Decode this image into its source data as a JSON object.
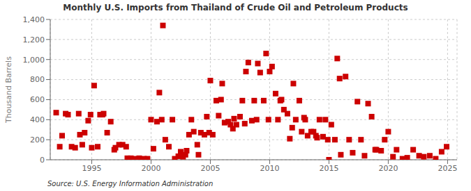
{
  "chart_data": {
    "type": "scatter",
    "title": "Monthly U.S. Imports from Thailand of Crude Oil and Petroleum Products",
    "ylabel": "Thousand Barrels",
    "annotations": [
      "Source: U.S. Energy Information Administration"
    ],
    "color": "#cc0000",
    "marker": "square",
    "grid": true,
    "xlim": [
      1991.5,
      2025.8
    ],
    "xticks": [
      1995,
      2000,
      2005,
      2010,
      2015,
      2020,
      2025
    ],
    "ylim": [
      0,
      1400
    ],
    "yticks": [
      0,
      200,
      400,
      600,
      800,
      {
        "value": 1000,
        "label": "1,000"
      },
      {
        "value": 1200,
        "label": "1,200"
      },
      {
        "value": 1400,
        "label": "1,400"
      }
    ],
    "x": [
      1992.0,
      1992.3,
      1992.5,
      1992.8,
      1993.0,
      1993.3,
      1993.6,
      1993.9,
      1994.0,
      1994.2,
      1994.4,
      1994.7,
      1994.9,
      1995.0,
      1995.2,
      1995.5,
      1995.7,
      1995.9,
      1996.0,
      1996.3,
      1996.6,
      1996.9,
      1997.0,
      1997.3,
      1997.6,
      1997.9,
      1998.0,
      1998.3,
      1998.6,
      1999.0,
      1999.4,
      1999.7,
      2000.0,
      2000.2,
      2000.5,
      2000.7,
      2000.9,
      2001.0,
      2001.2,
      2001.5,
      2001.8,
      2002.0,
      2002.3,
      2002.5,
      2002.7,
      2002.9,
      2003.0,
      2003.2,
      2003.4,
      2003.6,
      2003.9,
      2004.0,
      2004.2,
      2004.5,
      2004.7,
      2004.9,
      2005.0,
      2005.2,
      2005.5,
      2005.7,
      2005.9,
      2006.0,
      2006.2,
      2006.5,
      2006.7,
      2006.9,
      2007.0,
      2007.2,
      2007.5,
      2007.7,
      2007.9,
      2008.0,
      2008.2,
      2008.5,
      2008.7,
      2008.9,
      2009.0,
      2009.2,
      2009.5,
      2009.7,
      2009.9,
      2010.0,
      2010.2,
      2010.5,
      2010.7,
      2010.9,
      2011.0,
      2011.2,
      2011.5,
      2011.7,
      2011.9,
      2012.0,
      2012.2,
      2012.5,
      2012.7,
      2012.9,
      2013.0,
      2013.2,
      2013.5,
      2013.7,
      2013.9,
      2014.0,
      2014.2,
      2014.5,
      2014.7,
      2014.9,
      2015.0,
      2015.2,
      2015.5,
      2015.7,
      2015.9,
      2016.0,
      2016.4,
      2016.7,
      2017.0,
      2017.4,
      2017.7,
      2018.0,
      2018.3,
      2018.6,
      2018.9,
      2019.0,
      2019.4,
      2019.7,
      2020.0,
      2020.4,
      2020.7,
      2021.2,
      2021.6,
      2022.1,
      2022.6,
      2023.0,
      2023.5,
      2024.0,
      2024.5,
      2024.92
    ],
    "values": [
      470,
      130,
      240,
      460,
      450,
      130,
      120,
      460,
      250,
      150,
      270,
      390,
      450,
      120,
      740,
      130,
      450,
      450,
      460,
      270,
      380,
      100,
      120,
      150,
      150,
      130,
      15,
      15,
      10,
      15,
      10,
      10,
      400,
      110,
      380,
      670,
      400,
      1340,
      200,
      130,
      400,
      10,
      35,
      80,
      30,
      50,
      90,
      250,
      400,
      280,
      150,
      50,
      270,
      250,
      430,
      270,
      790,
      250,
      590,
      440,
      600,
      760,
      370,
      380,
      350,
      310,
      410,
      350,
      430,
      590,
      360,
      880,
      970,
      390,
      590,
      400,
      960,
      870,
      590,
      1060,
      400,
      880,
      930,
      660,
      400,
      590,
      600,
      500,
      460,
      210,
      320,
      760,
      400,
      590,
      280,
      420,
      400,
      240,
      280,
      280,
      240,
      220,
      400,
      230,
      400,
      200,
      0,
      350,
      200,
      1010,
      810,
      50,
      830,
      200,
      70,
      580,
      200,
      40,
      560,
      430,
      100,
      100,
      90,
      200,
      280,
      30,
      100,
      10,
      20,
      100,
      40,
      30,
      40,
      10,
      80,
      130
    ]
  }
}
